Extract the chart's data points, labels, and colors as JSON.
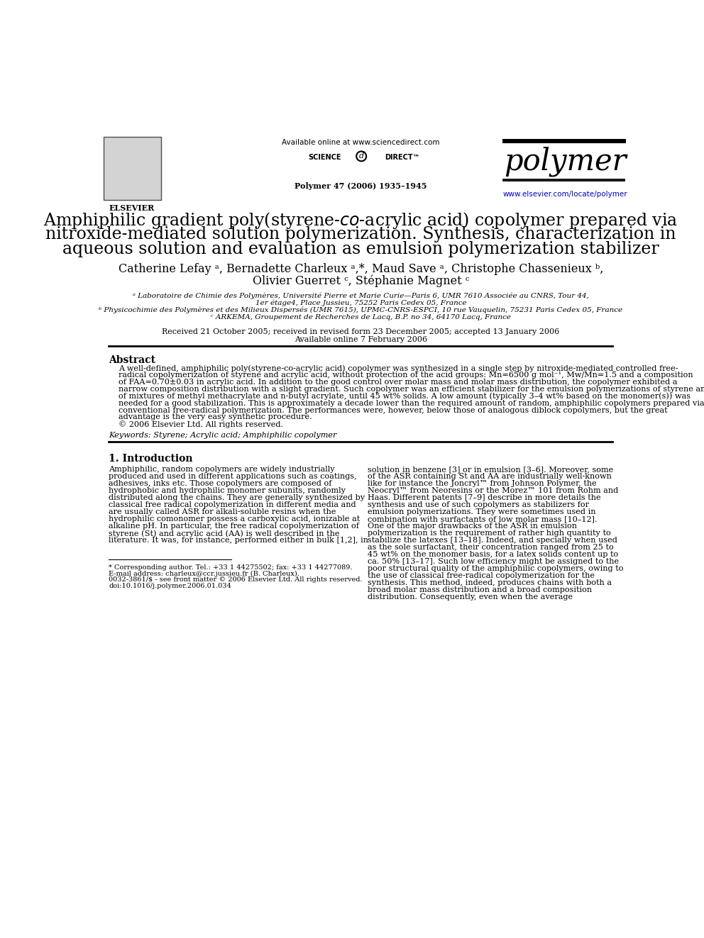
{
  "bg_color": "#ffffff",
  "header_available_online": "Available online at www.sciencedirect.com",
  "journal_name": "polymer",
  "journal_info": "Polymer 47 (2006) 1935–1945",
  "journal_url": "www.elsevier.com/locate/polymer",
  "affiliations_a": "ᵃ Laboratoire de Chimie des Polymères, Université Pierre et Marie Curie—Paris 6, UMR 7610 Associée au CNRS, Tour 44,",
  "affiliations_a2": "1er étage4, Place Jussieu, 75252 Paris Cedex 05, France",
  "affiliations_b": "ᵇ Physicochimie des Polymères et des Milieux Dispersés (UMR 7615), UPMC-CNRS-ESPCI, 10 rue Vauquelin, 75231 Paris Cedex 05, France",
  "affiliations_c": "ᶜ ARKEMA, Groupement de Recherches de Lacq, B.P. no 34, 64170 Lacq, France",
  "received": "Received 21 October 2005; received in revised form 23 December 2005; accepted 13 January 2006",
  "available": "Available online 7 February 2006",
  "abstract_title": "Abstract",
  "keywords": "Keywords: Styrene; Acrylic acid; Amphiphilic copolymer",
  "section1_title": "1. Introduction",
  "footnote_star": "* Corresponding author. Tel.: +33 1 44275502; fax: +33 1 44277089.",
  "footnote_email": "E-mail address: charleux@ccr.jussieu.fr (B. Charleux).",
  "footnote_issn": "0032-3861/$ - see front matter © 2006 Elsevier Ltd. All rights reserved.",
  "footnote_doi": "doi:10.1016/j.polymer.2006.01.034",
  "abstract_lines": [
    "A well-defined, amphiphilic poly(styrene-co-acrylic acid) copolymer was synthesized in a single step by nitroxide-mediated controlled free-",
    "radical copolymerization of styrene and acrylic acid, without protection of the acid groups: Mn=6500 g mol⁻¹, Mw/Mn=1.5 and a composition",
    "of FAA=0.70±0.03 in acrylic acid. In addition to the good control over molar mass and molar mass distribution, the copolymer exhibited a",
    "narrow composition distribution with a slight gradient. Such copolymer was an efficient stabilizer for the emulsion polymerizations of styrene and",
    "of mixtures of methyl methacrylate and n-butyl acrylate, until 45 wt% solids. A low amount (typically 3–4 wt% based on the monomer(s)) was",
    "needed for a good stabilization. This is approximately a decade lower than the required amount of random, amphiphilic copolymers prepared via",
    "conventional free-radical polymerization. The performances were, however, below those of analogous diblock copolymers, but the great",
    "advantage is the very easy synthetic procedure.",
    "© 2006 Elsevier Ltd. All rights reserved."
  ],
  "col1_lines": [
    "Amphiphilic, random copolymers are widely industrially",
    "produced and used in different applications such as coatings,",
    "adhesives, inks etc. Those copolymers are composed of",
    "hydrophobic and hydrophilic monomer subunits, randomly",
    "distributed along the chains. They are generally synthesized by",
    "classical free radical copolymerization in different media and",
    "are usually called ASR for alkali-soluble resins when the",
    "hydrophilic comonomer possess a carboxylic acid, ionizable at",
    "alkaline pH. In particular, the free radical copolymerization of",
    "styrene (St) and acrylic acid (AA) is well described in the",
    "literature. It was, for instance, performed either in bulk [1,2], in"
  ],
  "col2_lines": [
    "solution in benzene [3] or in emulsion [3–6]. Moreover, some",
    "of the ASR containing St and AA are industrially well-known",
    "like for instance the Joncryl™ from Johnson Polymer, the",
    "Neocryl™ from Neoresins or the Morez™ 101 from Rohm and",
    "Haas. Different patents [7–9] describe in more details the",
    "synthesis and use of such copolymers as stabilizers for",
    "emulsion polymerizations. They were sometimes used in",
    "combination with surfactants of low molar mass [10–12].",
    "One of the major drawbacks of the ASR in emulsion",
    "polymerization is the requirement of rather high quantity to",
    "stabilize the latexes [13–18]. Indeed, and specially when used",
    "as the sole surfactant, their concentration ranged from 25 to",
    "45 wt% on the monomer basis, for a latex solids content up to",
    "ca. 50% [13–17]. Such low efficiency might be assigned to the",
    "poor structural quality of the amphiphilic copolymers, owing to",
    "the use of classical free-radical copolymerization for the",
    "synthesis. This method, indeed, produces chains with both a",
    "broad molar mass distribution and a broad composition",
    "distribution. Consequently, even when the average"
  ]
}
